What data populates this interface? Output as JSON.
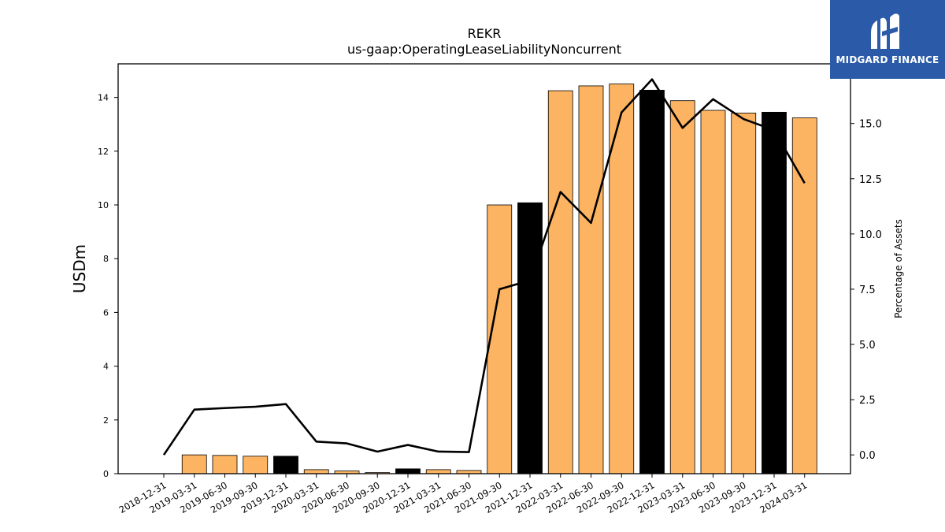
{
  "brand": {
    "name": "MIDGARD FINANCE",
    "logo_bg": "#2a5aa8"
  },
  "chart_data": {
    "type": "bar",
    "title": "REKR",
    "subtitle": "us-gaap:OperatingLeaseLiabilityNoncurrent",
    "ylabel": "USDm",
    "y2label": "Percentage of Assets",
    "ylim": [
      0,
      15.25
    ],
    "y2lim": [
      -0.85,
      17.7
    ],
    "yticks": [
      "0",
      "2",
      "4",
      "6",
      "8",
      "10",
      "12",
      "14"
    ],
    "y2ticks": [
      "0.0",
      "2.5",
      "5.0",
      "7.5",
      "10.0",
      "12.5",
      "15.0"
    ],
    "categories": [
      "2018-12-31",
      "2019-03-31",
      "2019-06-30",
      "2019-09-30",
      "2019-12-31",
      "2020-03-31",
      "2020-06-30",
      "2020-09-30",
      "2020-12-31",
      "2021-03-31",
      "2021-06-30",
      "2021-09-30",
      "2021-12-31",
      "2022-03-31",
      "2022-06-30",
      "2022-09-30",
      "2022-12-31",
      "2023-03-31",
      "2023-06-30",
      "2023-09-30",
      "2023-12-31",
      "2024-03-31"
    ],
    "series": [
      {
        "kind": "bar",
        "values": [
          0,
          0.7,
          0.68,
          0.65,
          0.65,
          0.15,
          0.1,
          0.04,
          0.18,
          0.15,
          0.12,
          10.0,
          10.08,
          14.25,
          14.43,
          14.5,
          14.27,
          13.88,
          13.52,
          13.42,
          13.45,
          13.24
        ],
        "annual_flags": [
          false,
          false,
          false,
          false,
          true,
          false,
          false,
          false,
          true,
          false,
          false,
          false,
          true,
          false,
          false,
          false,
          true,
          false,
          false,
          false,
          true,
          false
        ]
      },
      {
        "kind": "line",
        "axis": "right",
        "values": [
          0.0,
          2.05,
          2.12,
          2.18,
          2.3,
          0.6,
          0.52,
          0.15,
          0.45,
          0.15,
          0.13,
          7.5,
          7.9,
          11.9,
          10.5,
          15.5,
          17.0,
          14.8,
          16.1,
          15.2,
          14.7,
          12.3
        ]
      }
    ],
    "colors": {
      "bar": "#fdb462",
      "bar_annual": "#000000",
      "line": "#000000"
    }
  }
}
